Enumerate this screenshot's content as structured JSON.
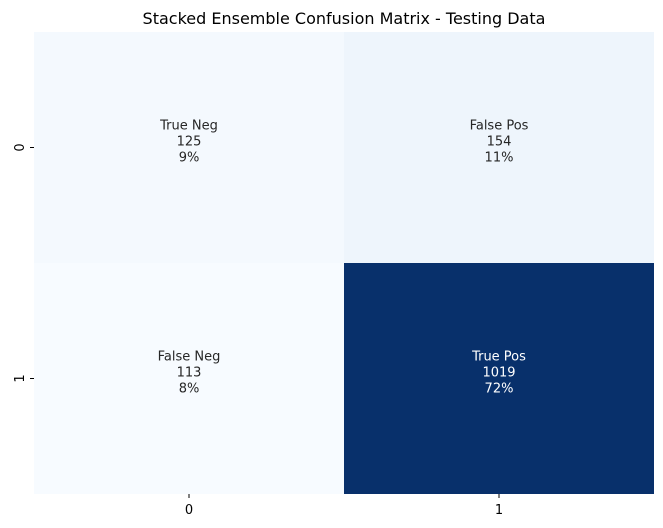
{
  "chart_data": {
    "type": "heatmap",
    "title": "Stacked Ensemble Confusion Matrix - Testing Data",
    "xlabel": "",
    "ylabel": "",
    "x_ticks": [
      "0",
      "1"
    ],
    "y_ticks": [
      "0",
      "1"
    ],
    "colormap": "Blues",
    "colors": {
      "low": "#f7fbff",
      "high": "#08306b",
      "text_dark": "#262626",
      "text_light": "#ffffff"
    },
    "cells": [
      {
        "row": 0,
        "col": 0,
        "label": "True Neg",
        "count": "125",
        "percent": "9%",
        "value": 125
      },
      {
        "row": 0,
        "col": 1,
        "label": "False Pos",
        "count": "154",
        "percent": "11%",
        "value": 154
      },
      {
        "row": 1,
        "col": 0,
        "label": "False Neg",
        "count": "113",
        "percent": "8%",
        "value": 113
      },
      {
        "row": 1,
        "col": 1,
        "label": "True Pos",
        "count": "1019",
        "percent": "72%",
        "value": 1019
      }
    ],
    "grid": false,
    "colorbar": false
  }
}
